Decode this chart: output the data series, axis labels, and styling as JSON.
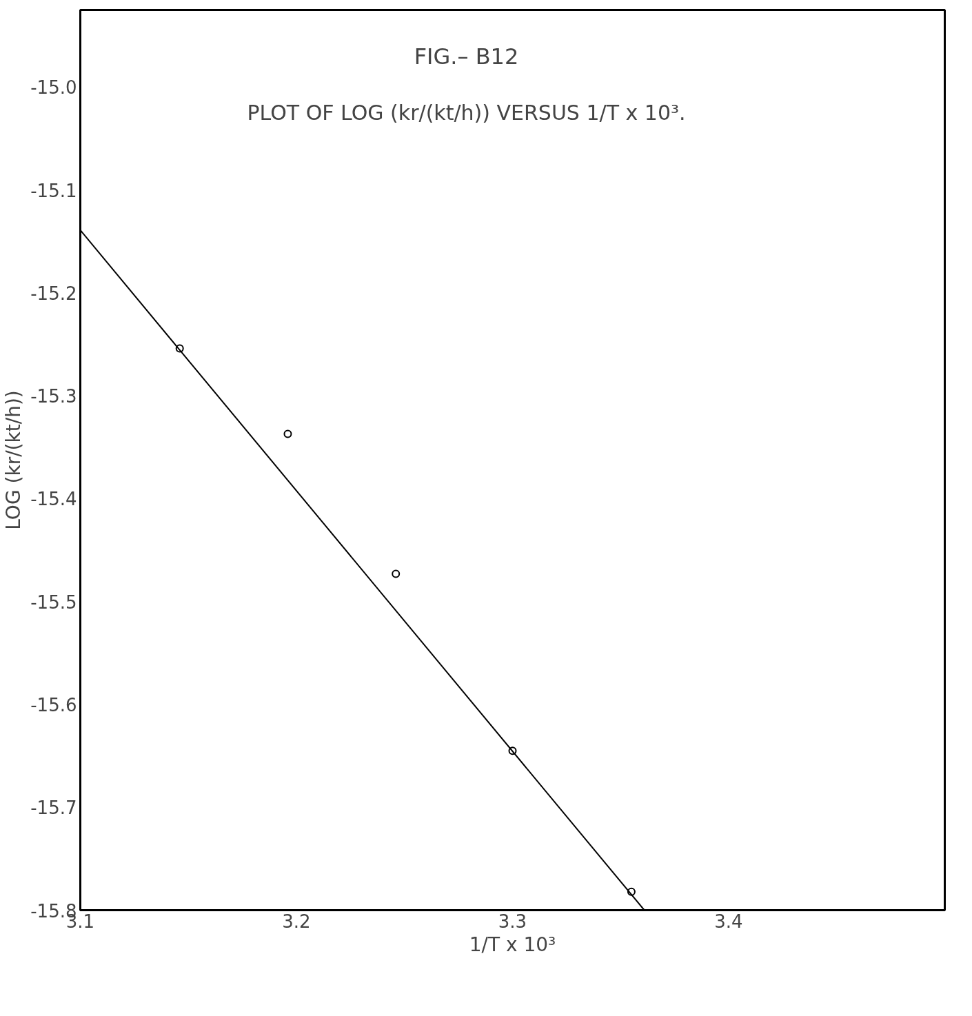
{
  "chart_data": {
    "type": "scatter",
    "title": "FIG.– B12",
    "subtitle": "PLOT OF LOG (kr/(kt/h)) VERSUS 1/T x 10³.",
    "xlabel": "1/T x 10³",
    "ylabel": "LOG (kr/(kt/h))",
    "series": [
      {
        "color": "#000000",
        "x": [
          3.146,
          3.196,
          3.246,
          3.3,
          3.355
        ],
        "values": [
          -15.254,
          -15.337,
          -15.473,
          -15.645,
          -15.782
        ]
      },
      {
        "type": "line",
        "marker": "none",
        "color": "#000000",
        "x": [
          3.1,
          3.361
        ],
        "values": [
          -15.139,
          -15.8
        ]
      }
    ],
    "xlim": [
      3.1,
      3.5
    ],
    "ylim": [
      -15.8,
      -14.925
    ],
    "xticks": [
      3.1,
      3.2,
      3.3,
      3.4
    ],
    "yticks": [
      -15.8,
      -15.7,
      -15.6,
      -15.5,
      -15.4,
      -15.3,
      -15.2,
      -15.1,
      {
        "value": -15,
        "label": "-15.0"
      }
    ],
    "grid": false,
    "marker": "circle",
    "line_style": "solid"
  }
}
